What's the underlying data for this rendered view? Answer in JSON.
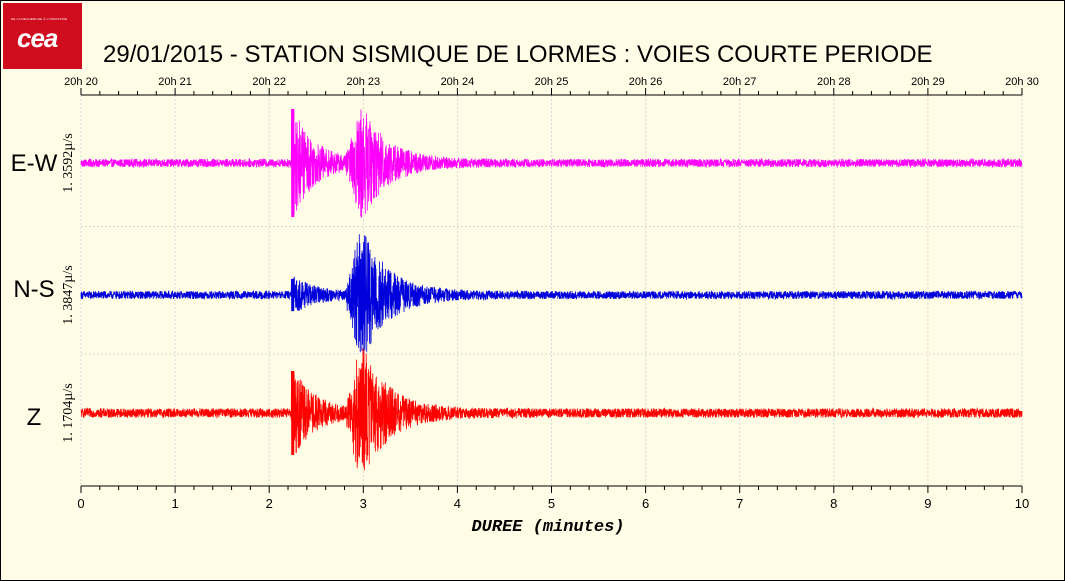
{
  "header": {
    "logo_text": "cea",
    "logo_subtext": "DE LA RECHERCHE À L'INDUSTRIE",
    "title": "29/01/2015  -  STATION SISMIQUE DE LORMES : VOIES COURTE PERIODE"
  },
  "chart_data": {
    "type": "line",
    "title": "29/01/2015  -  STATION SISMIQUE DE LORMES : VOIES COURTE PERIODE",
    "xlabel": "DUREE (minutes)",
    "xlim": [
      0,
      10
    ],
    "x_ticks": [
      "0",
      "1",
      "2",
      "3",
      "4",
      "5",
      "6",
      "7",
      "8",
      "9",
      "10"
    ],
    "top_axis_ticks": [
      "20h 20",
      "20h 21",
      "20h 22",
      "20h 23",
      "20h 24",
      "20h 25",
      "20h 26",
      "20h 27",
      "20h 28",
      "20h 29",
      "20h 30"
    ],
    "grid": true,
    "series": [
      {
        "name": "E-W",
        "color": "#ff00ff",
        "scale_label": "1. 3592µ/s",
        "noise": 0.07,
        "first_arrival_min": 2.25,
        "first_peak": 0.95,
        "second_arrival_min": 2.9,
        "second_peak": 0.95,
        "decay_end_min": 4.0
      },
      {
        "name": "N-S",
        "color": "#0000dd",
        "scale_label": "1. 3847µ/s",
        "noise": 0.06,
        "first_arrival_min": 2.25,
        "first_peak": 0.25,
        "second_arrival_min": 2.9,
        "second_peak": 1.0,
        "decay_end_min": 4.0
      },
      {
        "name": "Z",
        "color": "#ff0000",
        "scale_label": "1. 1704µ/s",
        "noise": 0.07,
        "first_arrival_min": 2.25,
        "first_peak": 0.65,
        "second_arrival_min": 2.9,
        "second_peak": 1.0,
        "decay_end_min": 4.2
      }
    ]
  }
}
